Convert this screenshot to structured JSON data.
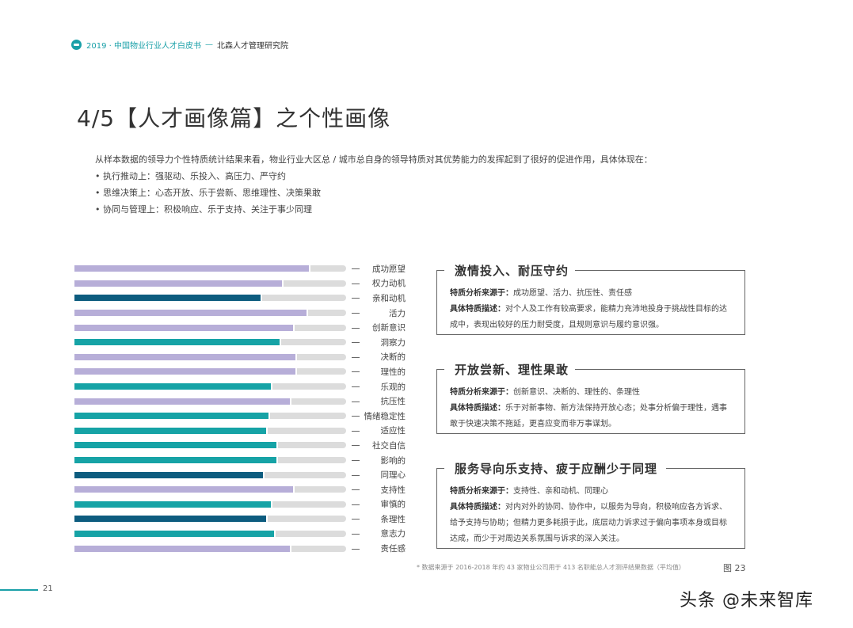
{
  "header": {
    "series": "2019 · 中国物业行业人才白皮书",
    "separator": "—",
    "publisher": "北森人才管理研究院"
  },
  "title": "4/5【人才画像篇】之个性画像",
  "intro": {
    "lead": "从样本数据的领导力个性特质统计结果来看，物业行业大区总 / 城市总自身的领导特质对其优势能力的发挥起到了很好的促进作用，具体体现在：",
    "bullets": [
      "• 执行推动上：强驱动、乐投入、高压力、严守约",
      "• 思维决策上：心态开放、乐于尝新、思维理性、决策果敢",
      "• 协同与管理上：积极响应、乐于支持、关注于事少同理"
    ]
  },
  "colors": {
    "lavender": "#b7aed8",
    "teal": "#16a3a6",
    "navy": "#0d5c7f",
    "track": "#dcdcdc",
    "accent": "#1aa0a8"
  },
  "chart_data": {
    "type": "bar",
    "orientation": "horizontal",
    "title": "",
    "xlabel": "",
    "ylabel": "",
    "xlim": [
      0,
      100
    ],
    "grid": false,
    "legend": "none",
    "note": "Values are relative bar lengths (% of track), estimated from pixels; no numeric axis shown.",
    "categories": [
      "成功愿望",
      "权力动机",
      "亲和动机",
      "活力",
      "创新意识",
      "洞察力",
      "决断的",
      "理性的",
      "乐观的",
      "抗压性",
      "情绪稳定性",
      "适应性",
      "社交自信",
      "影响的",
      "同理心",
      "支持性",
      "审慎的",
      "条理性",
      "意志力",
      "责任感"
    ],
    "values": [
      87,
      77,
      69,
      86,
      81,
      76,
      82,
      82,
      73,
      80,
      72,
      71,
      75,
      75,
      70,
      81,
      73,
      71,
      74,
      80
    ],
    "color_group": [
      "lav",
      "lav",
      "navy",
      "lav",
      "lav",
      "teal",
      "lav",
      "lav",
      "teal",
      "lav",
      "teal",
      "teal",
      "teal",
      "teal",
      "navy",
      "lav",
      "teal",
      "navy",
      "teal",
      "lav"
    ]
  },
  "bars": [
    {
      "label": "成功愿望",
      "pct": "87%",
      "c": "lav"
    },
    {
      "label": "权力动机",
      "pct": "77%",
      "c": "lav"
    },
    {
      "label": "亲和动机",
      "pct": "69%",
      "c": "navy"
    },
    {
      "label": "活力",
      "pct": "86%",
      "c": "lav"
    },
    {
      "label": "创新意识",
      "pct": "81%",
      "c": "lav"
    },
    {
      "label": "洞察力",
      "pct": "76%",
      "c": "teal"
    },
    {
      "label": "决断的",
      "pct": "82%",
      "c": "lav"
    },
    {
      "label": "理性的",
      "pct": "82%",
      "c": "lav"
    },
    {
      "label": "乐观的",
      "pct": "73%",
      "c": "teal"
    },
    {
      "label": "抗压性",
      "pct": "80%",
      "c": "lav"
    },
    {
      "label": "情绪稳定性",
      "pct": "72%",
      "c": "teal"
    },
    {
      "label": "适应性",
      "pct": "71%",
      "c": "teal"
    },
    {
      "label": "社交自信",
      "pct": "75%",
      "c": "teal"
    },
    {
      "label": "影响的",
      "pct": "75%",
      "c": "teal"
    },
    {
      "label": "同理心",
      "pct": "70%",
      "c": "navy"
    },
    {
      "label": "支持性",
      "pct": "81%",
      "c": "lav"
    },
    {
      "label": "审慎的",
      "pct": "73%",
      "c": "teal"
    },
    {
      "label": "条理性",
      "pct": "71%",
      "c": "navy"
    },
    {
      "label": "意志力",
      "pct": "74%",
      "c": "teal"
    },
    {
      "label": "责任感",
      "pct": "80%",
      "c": "lav"
    }
  ],
  "boxes": [
    {
      "title": "激情投入、耐压守约",
      "source_label": "特质分析来源于：",
      "source": "成功愿望、活力、抗压性、责任感",
      "desc_label": "具体特质描述：",
      "desc": "对个人及工作有较高要求，能精力充沛地投身于挑战性目标的达成中，表现出较好的压力耐受度，且规则意识与履约意识强。"
    },
    {
      "title": "开放尝新、理性果敢",
      "source_label": "特质分析来源于：",
      "source": "创新意识、决断的、理性的、条理性",
      "desc_label": "具体特质描述：",
      "desc": "乐于对新事物、新方法保持开放心态；处事分析偏于理性，遇事敢于快速决策不拖延，更喜应变而非万事谋划。"
    },
    {
      "title": "服务导向乐支持、疲于应酬少于同理",
      "source_label": "特质分析来源于：",
      "source": "支持性、亲和动机、同理心",
      "desc_label": "具体特质描述：",
      "desc": "对内对外的协同、协作中，以服务为导向，积极响应各方诉求、给予支持与协助；但精力更多耗损于此，底层动力诉求过于偏向事项本身或目标达成，而少于对周边关系氛围与诉求的深入关注。"
    }
  ],
  "footnote": "* 数据来源于 2016-2018 年约 43 家物业公司用于 413 名职能总人才测评结果数据（平均值）",
  "figure_label": "图 23",
  "page_number": "21",
  "watermark": "头条 @未来智库"
}
